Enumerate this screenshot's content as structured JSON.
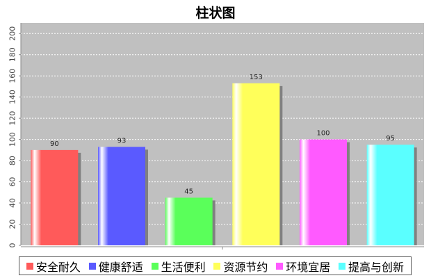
{
  "chart_data": {
    "type": "bar",
    "title": "柱状图",
    "categories": [
      "安全耐久",
      "健康舒适",
      "生活便利",
      "资源节约",
      "环境宜居",
      "提高与创新"
    ],
    "values": [
      90,
      93,
      45,
      153,
      100,
      95
    ],
    "colors": [
      "#ff5a5a",
      "#5a5aff",
      "#5aff5a",
      "#ffff5a",
      "#ff5aff",
      "#5affff"
    ],
    "ylim": [
      0,
      210
    ],
    "yticks": [
      "0",
      "20",
      "40",
      "60",
      "80",
      "100",
      "120",
      "140",
      "160",
      "180",
      "200"
    ],
    "xlabel": "",
    "ylabel": "",
    "grid": true,
    "legend_position": "bottom"
  }
}
